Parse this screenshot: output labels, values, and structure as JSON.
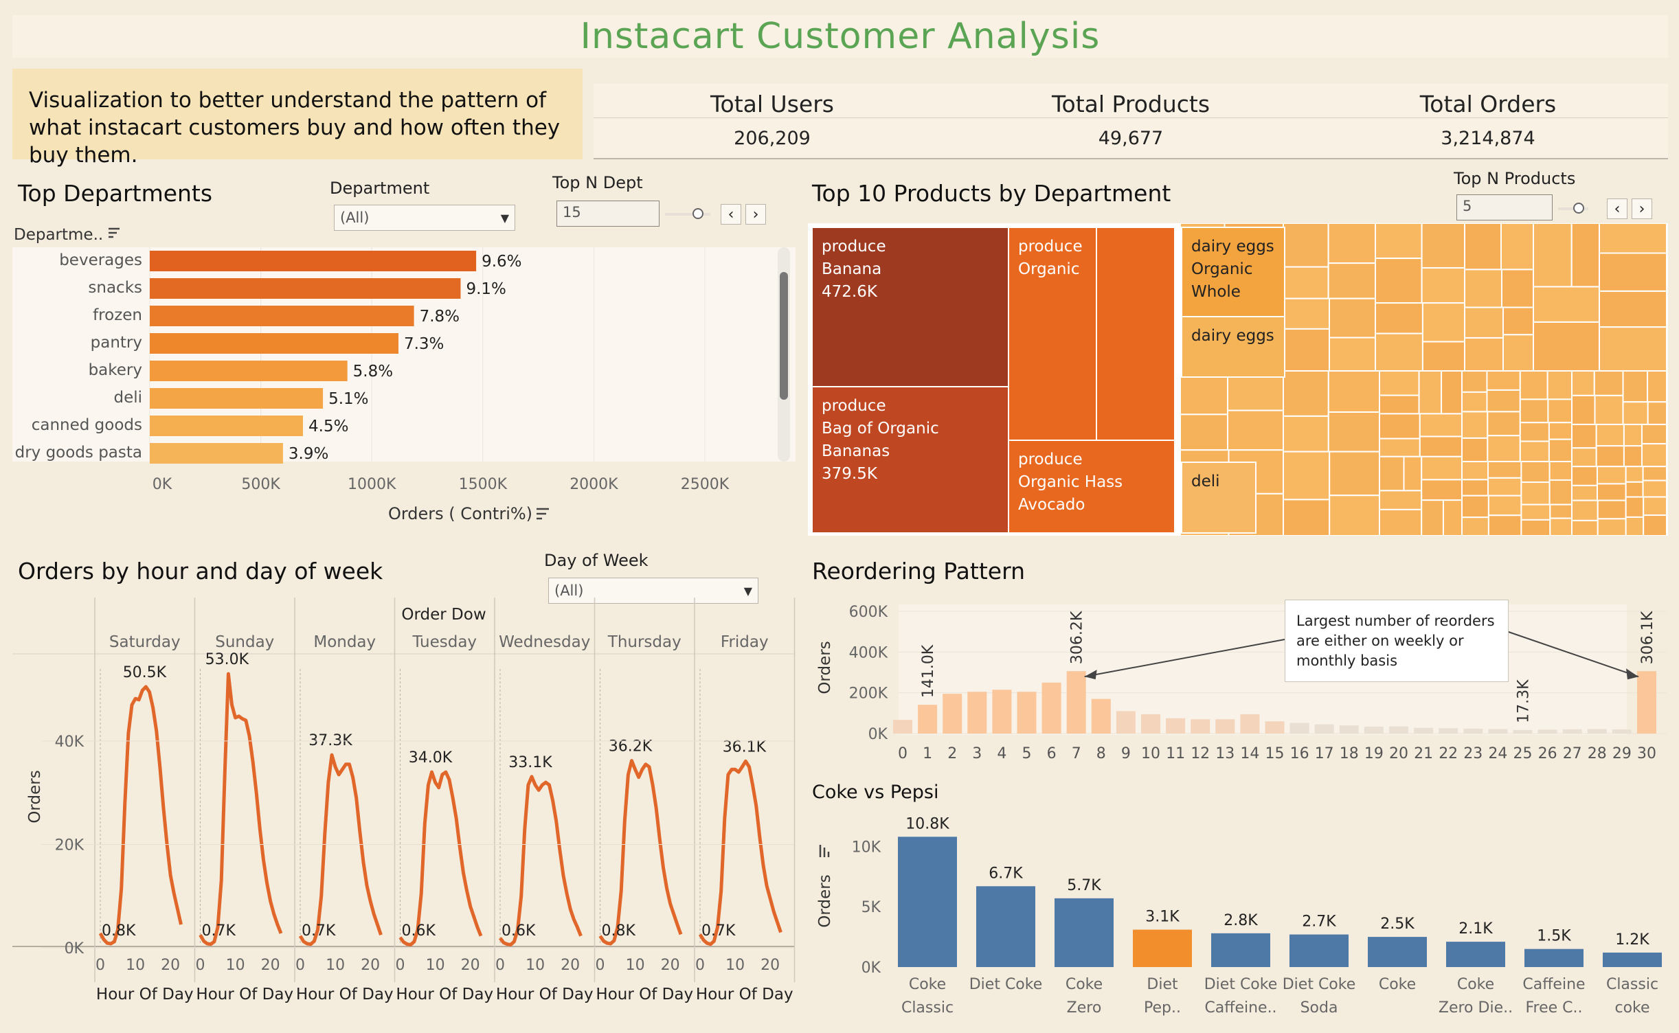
{
  "header": {
    "title": "Instacart Customer Analysis",
    "description": "Visualization to better understand the pattern of what instacart customers buy and how often they buy them."
  },
  "kpis": [
    {
      "label": "Total Users",
      "value": "206,209"
    },
    {
      "label": "Total Products",
      "value": "49,677"
    },
    {
      "label": "Total Orders",
      "value": "3,214,874"
    }
  ],
  "controls": {
    "department_label": "Department",
    "department_value": "(All)",
    "top_n_dept_label": "Top N Dept",
    "top_n_dept_value": "15",
    "top_n_products_label": "Top N Products",
    "top_n_products_value": "5",
    "day_of_week_label": "Day of Week",
    "day_of_week_value": "(All)"
  },
  "chart_data": [
    {
      "type": "bar",
      "orientation": "horizontal",
      "title": "Top Departments",
      "ylabel": "Departme..",
      "xlabel": "Orders ( Contri%)",
      "xlim": [
        0,
        2500000
      ],
      "xticks": [
        "0K",
        "500K",
        "1000K",
        "1500K",
        "2000K",
        "2500K"
      ],
      "categories": [
        "beverages",
        "snacks",
        "frozen",
        "pantry",
        "bakery",
        "deli",
        "canned goods",
        "dry goods pasta"
      ],
      "values": [
        1470000,
        1400000,
        1190000,
        1120000,
        890000,
        780000,
        690000,
        600000
      ],
      "labels": [
        "9.6%",
        "9.1%",
        "7.8%",
        "7.3%",
        "5.8%",
        "5.1%",
        "4.5%",
        "3.9%"
      ],
      "colors": [
        "#e0621e",
        "#e36a22",
        "#ea7b28",
        "#ee862c",
        "#f29a3c",
        "#f4a647",
        "#f5ae50",
        "#f6b458"
      ]
    },
    {
      "type": "treemap",
      "title": "Top 10 Products by Department",
      "labeled_tiles": [
        {
          "lines": [
            "produce",
            "Banana",
            "472.6K"
          ],
          "value": 472600,
          "color": "#9e3a20"
        },
        {
          "lines": [
            "produce",
            "Bag of Organic",
            "Bananas",
            "379.5K"
          ],
          "value": 379500,
          "color": "#bf4822"
        },
        {
          "lines": [
            "produce",
            "Organic"
          ],
          "color": "#e8681f"
        },
        {
          "lines": [
            "produce",
            "Organic Hass",
            "Avocado"
          ],
          "color": "#e8681f"
        },
        {
          "lines": [
            "dairy eggs",
            "Organic",
            "Whole"
          ],
          "color": "#f3a43f"
        },
        {
          "lines": [
            "dairy eggs"
          ],
          "color": "#f5b458"
        },
        {
          "lines": [
            "deli"
          ],
          "color": "#f7b865"
        }
      ]
    },
    {
      "type": "line",
      "title": "Orders by hour and day of week",
      "column_header": "Order Dow",
      "ylabel": "Orders",
      "xlabel": "Hour Of Day",
      "ylim": [
        0,
        55000
      ],
      "yticks": [
        "0K",
        "20K",
        "40K"
      ],
      "xticks": [
        "0",
        "10",
        "20"
      ],
      "hours": [
        0,
        1,
        2,
        3,
        4,
        5,
        6,
        7,
        8,
        9,
        10,
        11,
        12,
        13,
        14,
        15,
        16,
        17,
        18,
        19,
        20,
        21,
        22,
        23
      ],
      "color": "#e1662a",
      "series": [
        {
          "name": "Saturday",
          "max_label": "50.5K",
          "min_label": "0.8K",
          "values": [
            2800,
            1600,
            900,
            800,
            1200,
            3500,
            11500,
            28000,
            41500,
            47000,
            48200,
            48000,
            49800,
            50500,
            49500,
            46500,
            42000,
            35000,
            27000,
            20000,
            14000,
            10500,
            7500,
            4500
          ]
        },
        {
          "name": "Sunday",
          "max_label": "53.0K",
          "min_label": "0.7K",
          "values": [
            2500,
            1300,
            800,
            700,
            1200,
            4000,
            13000,
            34000,
            53000,
            47000,
            44500,
            44800,
            44300,
            44000,
            41000,
            36000,
            30000,
            23000,
            17000,
            12500,
            9000,
            6500,
            4500,
            2800
          ]
        },
        {
          "name": "Monday",
          "max_label": "37.3K",
          "min_label": "0.7K",
          "values": [
            2300,
            1200,
            800,
            700,
            1300,
            3500,
            10000,
            22000,
            32000,
            37300,
            35000,
            33500,
            34500,
            35500,
            35500,
            33000,
            29000,
            22500,
            16500,
            12000,
            9000,
            6500,
            4500,
            2500
          ]
        },
        {
          "name": "Tuesday",
          "max_label": "34.0K",
          "min_label": "0.6K",
          "values": [
            2000,
            1100,
            700,
            600,
            1200,
            3500,
            10500,
            24000,
            31500,
            34000,
            32000,
            31000,
            33500,
            34000,
            32500,
            29000,
            25000,
            19500,
            14500,
            11000,
            8000,
            6000,
            4000,
            2300
          ]
        },
        {
          "name": "Wednesday",
          "max_label": "33.1K",
          "min_label": "0.6K",
          "values": [
            1900,
            1000,
            700,
            600,
            1200,
            3500,
            10000,
            23000,
            31500,
            33100,
            31500,
            30500,
            31500,
            32000,
            31500,
            28500,
            24500,
            19000,
            14000,
            10500,
            7500,
            5500,
            4000,
            2300
          ]
        },
        {
          "name": "Thursday",
          "max_label": "36.2K",
          "min_label": "0.8K",
          "values": [
            2300,
            1300,
            900,
            800,
            1400,
            4000,
            11000,
            24500,
            33500,
            36200,
            34500,
            33000,
            34500,
            35500,
            35000,
            31500,
            27000,
            21000,
            15500,
            11500,
            8500,
            6500,
            4500,
            2600
          ]
        },
        {
          "name": "Friday",
          "max_label": "36.1K",
          "min_label": "0.7K",
          "values": [
            2600,
            1500,
            900,
            700,
            1300,
            4000,
            11000,
            25000,
            33500,
            34500,
            34500,
            34000,
            35000,
            36100,
            35000,
            31500,
            27500,
            21500,
            16000,
            12000,
            9500,
            7000,
            5000,
            3000
          ]
        }
      ]
    },
    {
      "type": "bar",
      "title": "Reordering Pattern",
      "ylabel": "Orders",
      "ylim": [
        0,
        600000
      ],
      "yticks": [
        "0K",
        "200K",
        "400K",
        "600K"
      ],
      "categories": [
        "0",
        "1",
        "2",
        "3",
        "4",
        "5",
        "6",
        "7",
        "8",
        "9",
        "10",
        "11",
        "12",
        "13",
        "14",
        "15",
        "16",
        "17",
        "18",
        "19",
        "20",
        "21",
        "22",
        "23",
        "24",
        "25",
        "26",
        "27",
        "28",
        "29",
        "30"
      ],
      "values": [
        67000,
        141000,
        195000,
        205000,
        215000,
        205000,
        250000,
        306200,
        170000,
        110000,
        95000,
        75000,
        70000,
        70000,
        95000,
        60000,
        52000,
        45000,
        40000,
        34000,
        35000,
        28000,
        26000,
        24000,
        22000,
        17300,
        19000,
        21000,
        22000,
        20000,
        306100
      ],
      "data_labels": {
        "1": "141.0K",
        "7": "306.2K",
        "25": "17.3K",
        "30": "306.1K"
      },
      "annotation": "Largest number of reorders are either on weekly or monthly basis"
    },
    {
      "type": "bar",
      "title": "Coke vs Pepsi",
      "ylabel": "Orders",
      "ylim": [
        0,
        11500
      ],
      "yticks": [
        "0K",
        "5K",
        "10K"
      ],
      "categories": [
        [
          "Coke",
          "Classic"
        ],
        [
          "Diet Coke",
          ""
        ],
        [
          "Coke",
          "Zero"
        ],
        [
          "Diet",
          "Pep.."
        ],
        [
          "Diet Coke",
          "Caffeine.."
        ],
        [
          "Diet Coke",
          "Soda"
        ],
        [
          "Coke",
          ""
        ],
        [
          "Coke",
          "Zero Die.."
        ],
        [
          "Caffeine",
          "Free C.."
        ],
        [
          "Classic",
          "coke"
        ]
      ],
      "values": [
        10800,
        6700,
        5700,
        3100,
        2800,
        2700,
        2500,
        2100,
        1500,
        1200
      ],
      "labels": [
        "10.8K",
        "6.7K",
        "5.7K",
        "3.1K",
        "2.8K",
        "2.7K",
        "2.5K",
        "2.1K",
        "1.5K",
        "1.2K"
      ],
      "colors": [
        "#4e79a7",
        "#4e79a7",
        "#4e79a7",
        "#f28e2b",
        "#4e79a7",
        "#4e79a7",
        "#4e79a7",
        "#4e79a7",
        "#4e79a7",
        "#4e79a7"
      ]
    }
  ]
}
